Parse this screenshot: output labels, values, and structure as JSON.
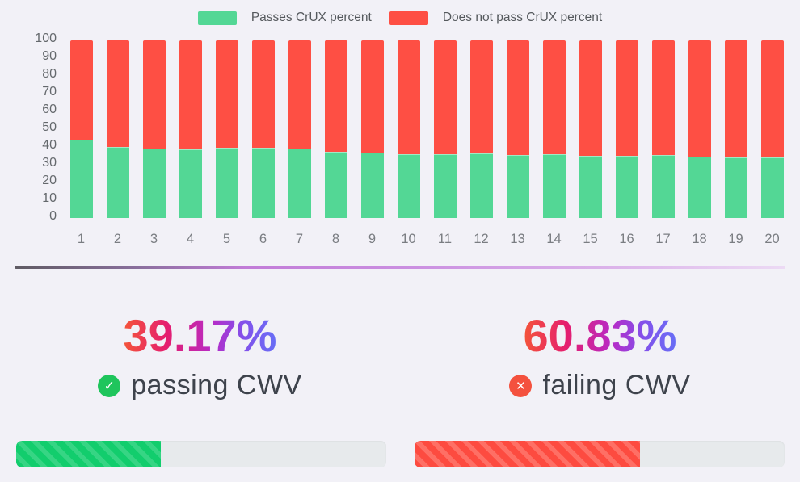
{
  "legend": {
    "items": [
      {
        "label": "Passes CrUX percent",
        "color": "#53d795"
      },
      {
        "label": "Does not pass CrUX percent",
        "color": "#fe4f44"
      }
    ]
  },
  "chart_data": {
    "type": "bar",
    "stacked": true,
    "categories": [
      "1",
      "2",
      "3",
      "4",
      "5",
      "6",
      "7",
      "8",
      "9",
      "10",
      "11",
      "12",
      "13",
      "14",
      "15",
      "16",
      "17",
      "18",
      "19",
      "20"
    ],
    "series": [
      {
        "name": "Passes CrUX percent",
        "color": "#53d795",
        "values": [
          44,
          40,
          39,
          38.5,
          39.5,
          39.5,
          39,
          37.5,
          37,
          36,
          36,
          36.5,
          35.5,
          36,
          35,
          35,
          35.5,
          34.5,
          34,
          34
        ]
      },
      {
        "name": "Does not pass CrUX percent",
        "color": "#fe4f44",
        "values": [
          56,
          60,
          61,
          61.5,
          60.5,
          60.5,
          61,
          62.5,
          63,
          64,
          64,
          63.5,
          64.5,
          64,
          65,
          65,
          64.5,
          65.5,
          66,
          66
        ]
      }
    ],
    "title": "",
    "xlabel": "",
    "ylabel": "",
    "ylim": [
      0,
      100
    ],
    "yticks": [
      0,
      10,
      20,
      30,
      40,
      50,
      60,
      70,
      80,
      90,
      100
    ],
    "grid": false,
    "legend_position": "top"
  },
  "summary": {
    "passing": {
      "value": "39.17%",
      "label": "passing CWV",
      "percent": 39.17,
      "icon": "check-circle",
      "icon_color": "#1fc55c"
    },
    "failing": {
      "value": "60.83%",
      "label": "failing CWV",
      "percent": 60.83,
      "icon": "x-circle",
      "icon_color": "#f4513e"
    }
  },
  "icons": {
    "check_glyph": "✓",
    "x_glyph": "✕"
  },
  "progress": {
    "passing_percent": 39.17,
    "failing_percent": 60.83,
    "green_base": "#12cd6d",
    "green_stripe": "#36d584",
    "red_base": "#fd4b40",
    "red_stripe": "#fe6f65",
    "track_color": "#e7eaec"
  },
  "colors": {
    "background": "#f2f1f7",
    "number_gradient": [
      "#f4543a",
      "#e51e6e",
      "#b72bc7",
      "#686ef6"
    ],
    "divider_gradient": [
      "#5f5b63",
      "#c27cd8",
      "#ecdaf4"
    ],
    "axis_text": "#64686c"
  }
}
